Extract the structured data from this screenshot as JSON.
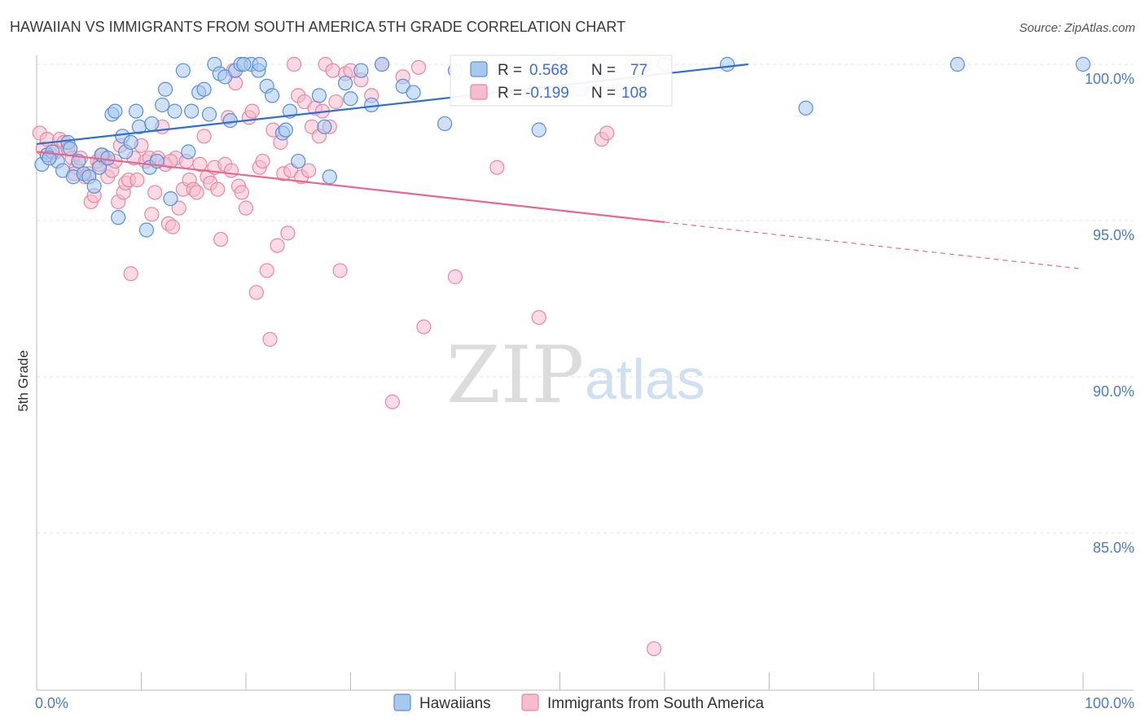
{
  "title": "HAWAIIAN VS IMMIGRANTS FROM SOUTH AMERICA 5TH GRADE CORRELATION CHART",
  "source": "Source: ZipAtlas.com",
  "watermark": {
    "zip": "ZIP",
    "atlas": "atlas"
  },
  "colors": {
    "blue_fill": "#a8c8ee",
    "blue_stroke": "#5a8fd6",
    "blue_line": "#2f6fd0",
    "pink_fill": "#f6bcd0",
    "pink_stroke": "#e8879f",
    "pink_line": "#e8668f",
    "tick_text": "#4a7cc7",
    "grid": "#e2e2e2"
  },
  "stats": [
    {
      "r_label": "R =",
      "r_value": "0.568",
      "n_label": "N =",
      "n_value": "77"
    },
    {
      "r_label": "R =",
      "r_value": "-0.199",
      "n_label": "N =",
      "n_value": "108"
    }
  ],
  "chart_data": {
    "type": "scatter",
    "title": "HAWAIIAN VS IMMIGRANTS FROM SOUTH AMERICA 5TH GRADE CORRELATION CHART",
    "xlabel": "",
    "ylabel": "5th Grade",
    "xlim": [
      0,
      100
    ],
    "ylim": [
      80.5,
      101.0
    ],
    "x_tick_labels": [
      "0.0%",
      "100.0%"
    ],
    "y_ticks": [
      85,
      90,
      95,
      100
    ],
    "y_tick_labels": [
      "85.0%",
      "90.0%",
      "95.0%",
      "100.0%"
    ],
    "grid": true,
    "legend_position": "bottom-center",
    "series": [
      {
        "name": "Hawaiians",
        "r": 0.568,
        "n": 77,
        "trend": {
          "x": [
            0,
            68
          ],
          "y": [
            97.45,
            100.0
          ],
          "dashed_to_x": null
        },
        "points": [
          [
            0.5,
            96.8
          ],
          [
            1,
            97.1
          ],
          [
            1.5,
            97.2
          ],
          [
            2,
            96.9
          ],
          [
            2.5,
            96.6
          ],
          [
            3,
            97.5
          ],
          [
            3.5,
            96.4
          ],
          [
            4,
            96.9
          ],
          [
            4.5,
            96.5
          ],
          [
            5,
            96.4
          ],
          [
            5.5,
            96.1
          ],
          [
            6,
            96.7
          ],
          [
            6.2,
            97.1
          ],
          [
            7.2,
            98.4
          ],
          [
            7.5,
            98.5
          ],
          [
            7.8,
            95.1
          ],
          [
            8.2,
            97.7
          ],
          [
            8.5,
            97.2
          ],
          [
            9.5,
            98.5
          ],
          [
            9.8,
            98.0
          ],
          [
            10.5,
            94.7
          ],
          [
            10.8,
            96.7
          ],
          [
            11,
            98.1
          ],
          [
            12,
            98.7
          ],
          [
            12.3,
            99.2
          ],
          [
            12.8,
            95.7
          ],
          [
            13.2,
            98.5
          ],
          [
            14,
            99.8
          ],
          [
            14.5,
            97.2
          ],
          [
            14.8,
            98.5
          ],
          [
            15.5,
            99.1
          ],
          [
            16,
            99.2
          ],
          [
            16.5,
            98.4
          ],
          [
            17,
            100.0
          ],
          [
            17.5,
            99.7
          ],
          [
            18,
            99.6
          ],
          [
            18.5,
            98.2
          ],
          [
            19,
            99.8
          ],
          [
            19.5,
            100.0
          ],
          [
            20.5,
            100.0
          ],
          [
            21.2,
            99.8
          ],
          [
            21.3,
            100.0
          ],
          [
            22,
            99.3
          ],
          [
            22.5,
            99.0
          ],
          [
            23.5,
            97.8
          ],
          [
            23.8,
            97.9
          ],
          [
            24.2,
            98.5
          ],
          [
            25,
            96.9
          ],
          [
            27,
            99.0
          ],
          [
            27.5,
            98.0
          ],
          [
            28,
            96.4
          ],
          [
            29.5,
            99.4
          ],
          [
            30,
            98.9
          ],
          [
            31,
            99.8
          ],
          [
            32,
            98.7
          ],
          [
            33,
            100.0
          ],
          [
            35,
            99.3
          ],
          [
            36,
            99.1
          ],
          [
            39,
            98.1
          ],
          [
            40,
            99.8
          ],
          [
            45,
            99.0
          ],
          [
            48,
            97.9
          ],
          [
            50,
            100.0
          ],
          [
            52,
            99.2
          ],
          [
            54,
            99.8
          ],
          [
            56,
            99.2
          ],
          [
            60,
            100.0
          ],
          [
            66,
            100.0
          ],
          [
            73.5,
            98.6
          ],
          [
            88,
            100.0
          ],
          [
            100,
            100.0
          ],
          [
            1.2,
            97.0
          ],
          [
            3.2,
            97.3
          ],
          [
            6.8,
            97.0
          ],
          [
            9,
            97.5
          ],
          [
            11.5,
            96.9
          ],
          [
            19.8,
            100.0
          ]
        ]
      },
      {
        "name": "Immigrants from South America",
        "r": -0.199,
        "n": 108,
        "trend": {
          "x": [
            0,
            60
          ],
          "y": [
            97.2,
            94.95
          ],
          "dashed_to_x": 100,
          "dashed_to_y": 93.45
        },
        "points": [
          [
            0.3,
            97.8
          ],
          [
            0.6,
            97.3
          ],
          [
            1,
            97.6
          ],
          [
            1.4,
            97.1
          ],
          [
            1.8,
            97.2
          ],
          [
            2.2,
            97.6
          ],
          [
            2.6,
            97.5
          ],
          [
            3,
            97.3
          ],
          [
            3.4,
            97.0
          ],
          [
            3.8,
            96.7
          ],
          [
            4.2,
            97.0
          ],
          [
            4.6,
            96.4
          ],
          [
            5,
            96.5
          ],
          [
            5.2,
            95.6
          ],
          [
            5.5,
            95.8
          ],
          [
            5.8,
            96.9
          ],
          [
            6,
            96.8
          ],
          [
            6.5,
            97.0
          ],
          [
            6.8,
            96.4
          ],
          [
            7.2,
            96.6
          ],
          [
            7.5,
            96.9
          ],
          [
            7.8,
            95.6
          ],
          [
            8,
            97.4
          ],
          [
            8.3,
            95.9
          ],
          [
            8.5,
            96.2
          ],
          [
            8.8,
            96.3
          ],
          [
            9,
            93.3
          ],
          [
            9.3,
            97.0
          ],
          [
            9.6,
            96.3
          ],
          [
            10,
            97.4
          ],
          [
            10.4,
            96.9
          ],
          [
            10.8,
            97.0
          ],
          [
            11,
            95.2
          ],
          [
            11.3,
            95.9
          ],
          [
            11.6,
            97.0
          ],
          [
            12,
            98.0
          ],
          [
            12.3,
            96.8
          ],
          [
            12.6,
            94.9
          ],
          [
            13,
            94.8
          ],
          [
            13.3,
            97.0
          ],
          [
            13.6,
            95.4
          ],
          [
            14,
            96.0
          ],
          [
            14.3,
            96.9
          ],
          [
            14.6,
            96.3
          ],
          [
            15,
            96.0
          ],
          [
            15.3,
            95.9
          ],
          [
            15.6,
            96.8
          ],
          [
            16,
            97.7
          ],
          [
            16.3,
            96.4
          ],
          [
            16.6,
            96.2
          ],
          [
            17,
            96.7
          ],
          [
            17.3,
            96.0
          ],
          [
            17.6,
            94.4
          ],
          [
            18,
            96.8
          ],
          [
            18.3,
            98.3
          ],
          [
            18.6,
            96.6
          ],
          [
            19,
            99.4
          ],
          [
            19.3,
            96.1
          ],
          [
            19.6,
            95.9
          ],
          [
            20,
            95.4
          ],
          [
            20.3,
            98.3
          ],
          [
            20.6,
            98.5
          ],
          [
            21,
            92.7
          ],
          [
            21.3,
            96.7
          ],
          [
            21.6,
            96.9
          ],
          [
            22,
            93.4
          ],
          [
            22.3,
            91.2
          ],
          [
            22.6,
            97.9
          ],
          [
            23,
            94.2
          ],
          [
            23.3,
            97.5
          ],
          [
            23.6,
            96.5
          ],
          [
            24,
            94.6
          ],
          [
            24.3,
            96.6
          ],
          [
            24.6,
            100.0
          ],
          [
            25,
            99.0
          ],
          [
            25.3,
            96.4
          ],
          [
            25.6,
            98.8
          ],
          [
            26,
            96.6
          ],
          [
            26.3,
            98.0
          ],
          [
            26.6,
            98.6
          ],
          [
            27,
            97.7
          ],
          [
            27.3,
            98.5
          ],
          [
            27.6,
            100.0
          ],
          [
            28,
            98.0
          ],
          [
            28.3,
            99.8
          ],
          [
            28.6,
            98.8
          ],
          [
            29,
            93.4
          ],
          [
            29.5,
            99.7
          ],
          [
            30,
            99.8
          ],
          [
            31,
            99.5
          ],
          [
            32,
            99.0
          ],
          [
            33,
            100.0
          ],
          [
            34,
            89.2
          ],
          [
            35,
            99.6
          ],
          [
            37,
            91.6
          ],
          [
            40,
            93.2
          ],
          [
            42,
            99.0
          ],
          [
            44,
            96.7
          ],
          [
            48,
            91.9
          ],
          [
            53,
            99.1
          ],
          [
            54,
            97.6
          ],
          [
            54.5,
            97.8
          ],
          [
            59,
            81.3
          ],
          [
            36.5,
            99.9
          ],
          [
            18.8,
            99.8
          ],
          [
            12.8,
            96.9
          ],
          [
            6.3,
            97.1
          ],
          [
            3.6,
            96.5
          ]
        ]
      }
    ]
  }
}
